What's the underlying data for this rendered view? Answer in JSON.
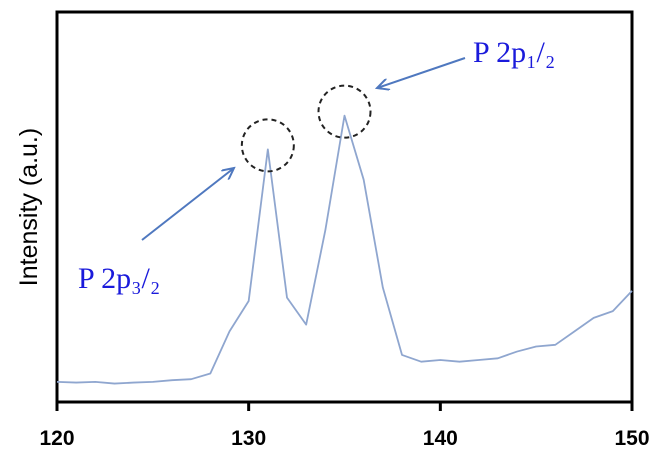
{
  "chart_data": {
    "type": "line",
    "title": "",
    "xlabel": "",
    "ylabel": "Intensity (a.u.)",
    "xlim": [
      120,
      150
    ],
    "ylim": [
      0,
      1
    ],
    "x_ticks": [
      "120",
      "130",
      "140",
      "150"
    ],
    "grid": false,
    "series": [
      {
        "color": "#8fa6cf",
        "x": [
          120,
          121,
          122,
          123,
          124,
          125,
          126,
          127,
          128,
          129,
          130,
          131,
          132,
          133,
          134,
          135,
          136,
          137,
          138,
          139,
          140,
          141,
          142,
          143,
          144,
          145,
          146,
          147,
          148,
          149,
          150
        ],
        "y": [
          0.03,
          0.028,
          0.03,
          0.025,
          0.028,
          0.03,
          0.035,
          0.038,
          0.055,
          0.18,
          0.27,
          0.72,
          0.28,
          0.2,
          0.48,
          0.82,
          0.63,
          0.31,
          0.11,
          0.09,
          0.095,
          0.09,
          0.095,
          0.1,
          0.12,
          0.135,
          0.14,
          0.18,
          0.22,
          0.24,
          0.3
        ]
      }
    ],
    "annotations": [
      {
        "text": "P 2p₁/₂",
        "x": 135,
        "y": 0.82,
        "marker": "dashed-circle",
        "arrow": true
      },
      {
        "text": "P 2p₃/₂",
        "x": 131,
        "y": 0.72,
        "marker": "dashed-circle",
        "arrow": true
      }
    ]
  }
}
